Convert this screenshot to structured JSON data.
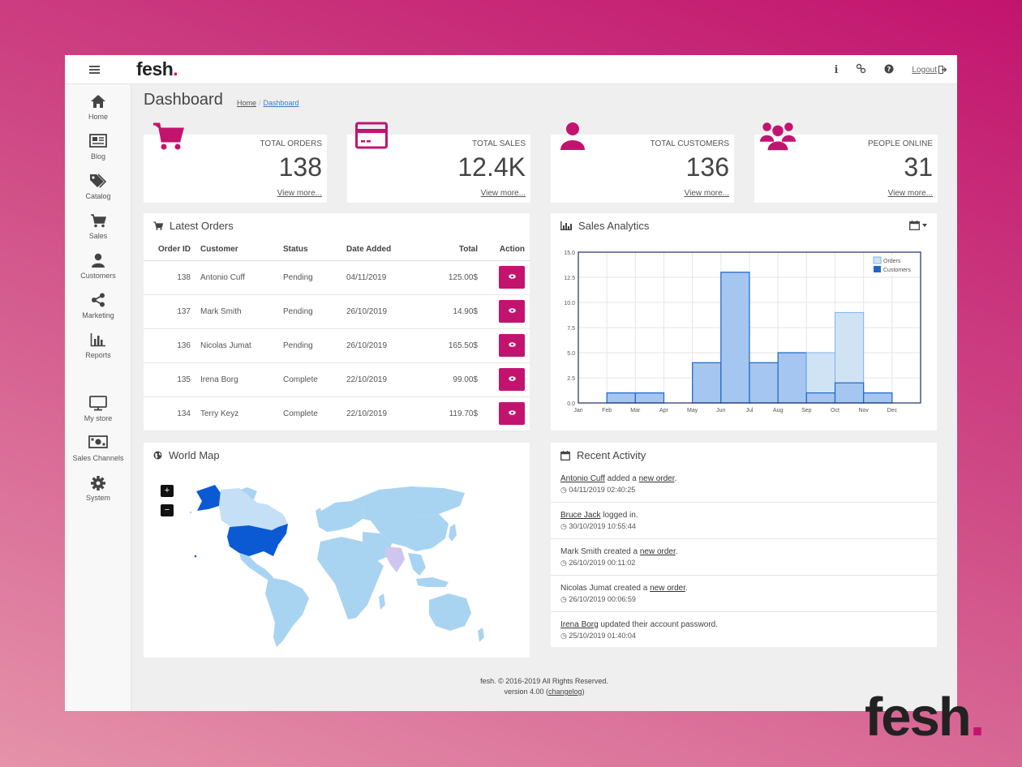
{
  "topbar": {
    "logo": "fesh",
    "logo_dot": ".",
    "info_icon": "i",
    "logout_label": "Logout"
  },
  "sidebar": {
    "items": [
      {
        "label": "Home",
        "icon": "home-icon"
      },
      {
        "label": "Blog",
        "icon": "newspaper-icon"
      },
      {
        "label": "Catalog",
        "icon": "tags-icon"
      },
      {
        "label": "Sales",
        "icon": "cart-icon"
      },
      {
        "label": "Customers",
        "icon": "user-icon"
      },
      {
        "label": "Marketing",
        "icon": "share-icon"
      },
      {
        "label": "Reports",
        "icon": "bar-chart-icon"
      },
      {
        "label": "My store",
        "icon": "monitor-icon"
      },
      {
        "label": "Sales Channels",
        "icon": "money-icon"
      },
      {
        "label": "System",
        "icon": "gear-icon"
      }
    ]
  },
  "page": {
    "title": "Dashboard",
    "breadcrumb": [
      "Home",
      "Dashboard"
    ]
  },
  "stats": [
    {
      "label": "TOTAL ORDERS",
      "value": "138",
      "more": "View more..."
    },
    {
      "label": "TOTAL SALES",
      "value": "12.4K",
      "more": "View more..."
    },
    {
      "label": "TOTAL CUSTOMERS",
      "value": "136",
      "more": "View more..."
    },
    {
      "label": "PEOPLE ONLINE",
      "value": "31",
      "more": "View more..."
    }
  ],
  "orders": {
    "title": "Latest Orders",
    "columns": [
      "Order ID",
      "Customer",
      "Status",
      "Date Added",
      "Total",
      "Action"
    ],
    "rows": [
      {
        "id": "138",
        "customer": "Antonio Cuff",
        "status": "Pending",
        "date": "04/11/2019",
        "total": "125.00$"
      },
      {
        "id": "137",
        "customer": "Mark Smith",
        "status": "Pending",
        "date": "26/10/2019",
        "total": "14.90$"
      },
      {
        "id": "136",
        "customer": "Nicolas Jumat",
        "status": "Pending",
        "date": "26/10/2019",
        "total": "165.50$"
      },
      {
        "id": "135",
        "customer": "Irena Borg",
        "status": "Complete",
        "date": "22/10/2019",
        "total": "99.00$"
      },
      {
        "id": "134",
        "customer": "Terry Keyz",
        "status": "Complete",
        "date": "22/10/2019",
        "total": "119.70$"
      }
    ]
  },
  "analytics": {
    "title": "Sales Analytics"
  },
  "chart_data": {
    "type": "bar",
    "categories": [
      "Jan",
      "Feb",
      "Mar",
      "Apr",
      "May",
      "Jun",
      "Jul",
      "Aug",
      "Sep",
      "Oct",
      "Nov",
      "Dec"
    ],
    "series": [
      {
        "name": "Orders",
        "values": [
          0,
          1,
          1,
          0,
          4,
          13,
          4,
          5,
          5,
          9,
          1,
          0
        ],
        "color": "#cfe3f5"
      },
      {
        "name": "Customers",
        "values": [
          0,
          1,
          1,
          0,
          4,
          13,
          4,
          5,
          1,
          2,
          1,
          0
        ],
        "color": "#2166c4"
      }
    ],
    "yticks": [
      "0.0",
      "2.5",
      "5.0",
      "7.5",
      "10.0",
      "12.5",
      "15.0"
    ],
    "ylim": [
      0,
      15
    ],
    "grid": true,
    "legend": "top-right"
  },
  "worldmap": {
    "title": "World Map",
    "zoom_in": "+",
    "zoom_out": "−"
  },
  "activity": {
    "title": "Recent Activity",
    "items": [
      {
        "actor": "Antonio Cuff",
        "text": " added a ",
        "link": "new order",
        "end": ".",
        "time": "04/11/2019 02:40:25"
      },
      {
        "actor": "Bruce Jack",
        "text": " logged in.",
        "link": "",
        "end": "",
        "time": "30/10/2019 10:55:44"
      },
      {
        "actor": "Mark Smith",
        "text": " created a ",
        "link": "new order",
        "end": ".",
        "time": "26/10/2019 00:11:02"
      },
      {
        "actor": "Nicolas Jumat",
        "text": " created a ",
        "link": "new order",
        "end": ".",
        "time": "26/10/2019 00:06:59"
      },
      {
        "actor": "Irena Borg",
        "text": " updated their account password.",
        "link": "",
        "end": "",
        "time": "25/10/2019 01:40:04"
      }
    ]
  },
  "footer": {
    "line1": "fesh. © 2016-2019 All Rights Reserved.",
    "version": "version 4.00 (",
    "changelog": "changelog",
    "close": ")"
  },
  "brand": {
    "name": "fesh",
    "dot": "."
  },
  "colors": {
    "accent": "#c2146e",
    "map_land": "#a8d4f2",
    "map_highlight": "#0b5ad3"
  }
}
